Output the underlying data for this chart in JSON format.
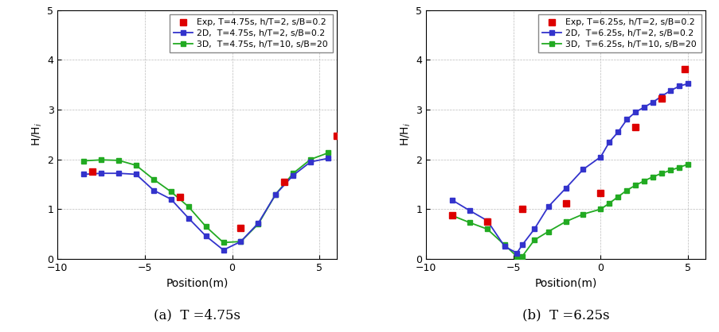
{
  "panel_a": {
    "title": "(a)  T =4.75s",
    "xlabel": "Position(m)",
    "ylabel": "H/H$_i$",
    "xlim": [
      -10,
      6
    ],
    "ylim": [
      0,
      5
    ],
    "xticks": [
      -10,
      -5,
      0,
      5
    ],
    "yticks": [
      0,
      1,
      2,
      3,
      4,
      5
    ],
    "exp_x": [
      -8.0,
      -3.0,
      0.5,
      3.0,
      6.0
    ],
    "exp_y": [
      1.75,
      1.25,
      0.62,
      1.55,
      2.47
    ],
    "line2d_x": [
      -8.5,
      -7.5,
      -6.5,
      -5.5,
      -4.5,
      -3.5,
      -2.5,
      -1.5,
      -0.5,
      0.5,
      1.5,
      2.5,
      3.5,
      4.5,
      5.5
    ],
    "line2d_y": [
      1.7,
      1.72,
      1.72,
      1.7,
      1.38,
      1.2,
      0.82,
      0.46,
      0.18,
      0.35,
      0.72,
      1.3,
      1.68,
      1.95,
      2.02
    ],
    "line3d_x": [
      -8.5,
      -7.5,
      -6.5,
      -5.5,
      -4.5,
      -3.5,
      -2.5,
      -1.5,
      -0.5,
      0.5,
      1.5,
      2.5,
      3.5,
      4.5,
      5.5
    ],
    "line3d_y": [
      1.97,
      1.99,
      1.98,
      1.88,
      1.6,
      1.35,
      1.05,
      0.65,
      0.33,
      0.35,
      0.7,
      1.3,
      1.72,
      2.0,
      2.13
    ],
    "legend_exp": "Exp, T=4.75s, h/T=2, s/B=0.2",
    "legend_2d": "2D,  T=4.75s, h/T=2, s/B=0.2",
    "legend_3d": "3D,  T=4.75s, h/T=10, s/B=20"
  },
  "panel_b": {
    "title": "(b)  T =6.25s",
    "xlabel": "Position(m)",
    "ylabel": "H/H$_i$",
    "xlim": [
      -10,
      6
    ],
    "ylim": [
      0,
      5
    ],
    "xticks": [
      -10,
      -5,
      0,
      5
    ],
    "yticks": [
      0,
      1,
      2,
      3,
      4,
      5
    ],
    "exp_points_x": [
      -8.5,
      -6.5,
      -4.5,
      -2.0,
      0.0,
      2.0,
      3.5,
      4.8
    ],
    "exp_points_y": [
      0.87,
      0.75,
      1.0,
      1.12,
      1.32,
      2.65,
      3.22,
      3.82
    ],
    "line2d_x": [
      -8.5,
      -7.5,
      -6.5,
      -5.5,
      -4.8,
      -4.5,
      -3.8,
      -3.0,
      -2.0,
      -1.0,
      0.0,
      0.5,
      1.0,
      1.5,
      2.0,
      2.5,
      3.0,
      3.5,
      4.0,
      4.5,
      5.0
    ],
    "line2d_y": [
      1.18,
      0.97,
      0.77,
      0.25,
      0.12,
      0.28,
      0.6,
      1.05,
      1.42,
      1.8,
      2.05,
      2.35,
      2.55,
      2.8,
      2.95,
      3.05,
      3.15,
      3.27,
      3.38,
      3.47,
      3.52
    ],
    "line3d_x": [
      -8.5,
      -7.5,
      -6.5,
      -5.5,
      -4.8,
      -4.5,
      -3.8,
      -3.0,
      -2.0,
      -1.0,
      0.0,
      0.5,
      1.0,
      1.5,
      2.0,
      2.5,
      3.0,
      3.5,
      4.0,
      4.5,
      5.0
    ],
    "line3d_y": [
      0.87,
      0.73,
      0.6,
      0.28,
      0.05,
      0.05,
      0.38,
      0.55,
      0.75,
      0.9,
      1.0,
      1.12,
      1.25,
      1.38,
      1.48,
      1.57,
      1.65,
      1.72,
      1.78,
      1.84,
      1.9
    ],
    "legend_exp": "Exp, T=6.25s, h/T=2, s/B=0.2",
    "legend_2d": "2D,  T=6.25s, h/T=2, s/B=0.2",
    "legend_3d": "3D,  T=6.25s, h/T=10, s/B=20"
  },
  "colors": {
    "exp": "#dd0000",
    "line2d": "#3333cc",
    "line3d": "#22aa22"
  },
  "marker": "s",
  "markersize": 5,
  "linewidth": 1.3
}
